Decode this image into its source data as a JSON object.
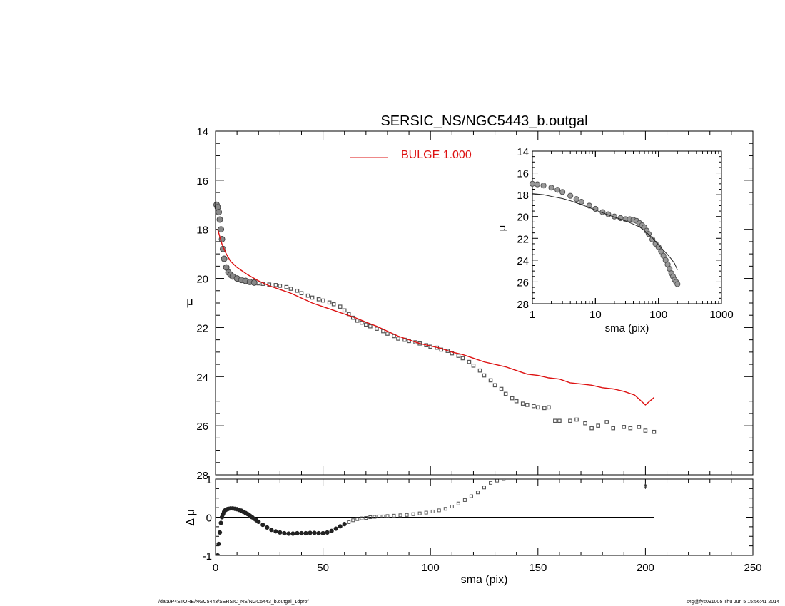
{
  "footer": {
    "left": "/data/P4STORE/NGC5443/SERSIC_NS/NGC5443_b.outgal_1dprof",
    "right": "s4g@fys091005  Thu Jun  5 15:56:41 2014"
  },
  "chart_data": [
    {
      "id": "main",
      "type": "scatter",
      "title": "SERSIC_NS/NGC5443_b.outgal",
      "xlabel": "",
      "ylabel": "μ",
      "xlim": [
        0,
        250
      ],
      "ylim": [
        28,
        14
      ],
      "y_inverted": true,
      "yticks": [
        "14",
        "16",
        "18",
        "20",
        "22",
        "24",
        "26",
        "28"
      ],
      "legend": {
        "placement": "top-center",
        "label": "BULGE  1.000",
        "color": "#dd1111"
      },
      "series": [
        {
          "kind": "data_points",
          "color": "#555555",
          "x": [
            0.5,
            1,
            1.5,
            2,
            2.5,
            3,
            3.5,
            4,
            5,
            6,
            7,
            8,
            10,
            12,
            14,
            16,
            18,
            20,
            22,
            25,
            28,
            30,
            33,
            35,
            38,
            40,
            43,
            45,
            48,
            50,
            53,
            55,
            58,
            60,
            62,
            64,
            66,
            68,
            70,
            72,
            75,
            78,
            80,
            83,
            85,
            88,
            90,
            93,
            95,
            98,
            100,
            103,
            105,
            108,
            110,
            113,
            115,
            118,
            120,
            123,
            125,
            128,
            130,
            133,
            135,
            138,
            140,
            143,
            145,
            148,
            150,
            153,
            155,
            158,
            160,
            165,
            168,
            172,
            175,
            178,
            182,
            185,
            190,
            193,
            197,
            200,
            204
          ],
          "y": [
            17.0,
            17.1,
            17.3,
            17.6,
            18.0,
            18.4,
            18.8,
            19.2,
            19.55,
            19.75,
            19.85,
            19.92,
            20.0,
            20.06,
            20.1,
            20.14,
            20.17,
            20.2,
            20.22,
            20.25,
            20.27,
            20.3,
            20.35,
            20.42,
            20.5,
            20.6,
            20.7,
            20.78,
            20.85,
            20.9,
            20.98,
            21.05,
            21.15,
            21.3,
            21.45,
            21.6,
            21.72,
            21.8,
            21.88,
            21.95,
            22.05,
            22.15,
            22.25,
            22.35,
            22.45,
            22.5,
            22.55,
            22.6,
            22.65,
            22.72,
            22.78,
            22.82,
            22.9,
            22.95,
            23.05,
            23.15,
            23.25,
            23.4,
            23.55,
            23.75,
            23.95,
            24.15,
            24.35,
            24.5,
            24.7,
            24.88,
            25.0,
            25.1,
            25.15,
            25.2,
            25.25,
            25.28,
            25.25,
            25.8,
            25.8,
            25.8,
            25.75,
            25.9,
            26.1,
            26.0,
            25.85,
            26.1,
            26.05,
            26.1,
            26.05,
            26.2,
            26.25
          ]
        },
        {
          "kind": "model_line",
          "name": "BULGE  1.000",
          "color": "#dd1111",
          "x": [
            1,
            3,
            5,
            7,
            10,
            15,
            20,
            25,
            30,
            35,
            40,
            45,
            50,
            55,
            60,
            65,
            70,
            75,
            80,
            85,
            90,
            95,
            100,
            105,
            110,
            115,
            120,
            125,
            130,
            135,
            140,
            145,
            150,
            155,
            160,
            165,
            170,
            175,
            180,
            185,
            190,
            195,
            200,
            204
          ],
          "y": [
            18.0,
            18.6,
            19.0,
            19.3,
            19.55,
            19.85,
            20.1,
            20.3,
            20.45,
            20.6,
            20.8,
            21.0,
            21.15,
            21.3,
            21.45,
            21.6,
            21.78,
            21.95,
            22.15,
            22.35,
            22.5,
            22.65,
            22.75,
            22.85,
            23.0,
            23.1,
            23.25,
            23.4,
            23.5,
            23.6,
            23.75,
            23.9,
            23.95,
            24.05,
            24.1,
            24.25,
            24.3,
            24.35,
            24.45,
            24.5,
            24.6,
            24.75,
            25.15,
            24.85
          ]
        }
      ]
    },
    {
      "id": "residual",
      "type": "scatter",
      "xlabel": "sma (pix)",
      "ylabel": "Δ μ",
      "xlim": [
        0,
        250
      ],
      "ylim": [
        -1,
        1
      ],
      "xticks": [
        "0",
        "50",
        "100",
        "150",
        "200",
        "250"
      ],
      "yticks": [
        "1",
        "0",
        "-1"
      ],
      "zero_line": {
        "x": [
          0,
          204
        ],
        "y": 0
      },
      "error_point": {
        "x": 200,
        "y": 0.82,
        "err": 0.08
      },
      "series": [
        {
          "kind": "residuals",
          "color": "#222222",
          "x": [
            1,
            1.5,
            2,
            2.5,
            3,
            3.5,
            4,
            4.5,
            5,
            5.5,
            6,
            7,
            8,
            9,
            10,
            11,
            12,
            13,
            14,
            15,
            16,
            17,
            18,
            19,
            20,
            22,
            24,
            26,
            28,
            30,
            32,
            34,
            36,
            38,
            40,
            42,
            44,
            46,
            48,
            50,
            52,
            54,
            56,
            58,
            60,
            62,
            64,
            66,
            68,
            70,
            72,
            74,
            76,
            78,
            80,
            83,
            86,
            89,
            92,
            95,
            98,
            101,
            104,
            107,
            110,
            113,
            116,
            119,
            122,
            125,
            128,
            131,
            134,
            137,
            140
          ],
          "y": [
            -1.0,
            -0.7,
            -0.4,
            -0.15,
            0.0,
            0.08,
            0.14,
            0.18,
            0.2,
            0.21,
            0.22,
            0.23,
            0.23,
            0.22,
            0.21,
            0.19,
            0.17,
            0.14,
            0.11,
            0.08,
            0.04,
            0.0,
            -0.04,
            -0.08,
            -0.12,
            -0.2,
            -0.27,
            -0.33,
            -0.37,
            -0.4,
            -0.42,
            -0.43,
            -0.43,
            -0.42,
            -0.42,
            -0.42,
            -0.41,
            -0.41,
            -0.42,
            -0.42,
            -0.4,
            -0.36,
            -0.3,
            -0.24,
            -0.18,
            -0.13,
            -0.08,
            -0.05,
            -0.03,
            -0.02,
            0.0,
            0.01,
            0.02,
            0.02,
            0.03,
            0.04,
            0.05,
            0.06,
            0.08,
            0.1,
            0.12,
            0.15,
            0.18,
            0.22,
            0.28,
            0.36,
            0.45,
            0.55,
            0.65,
            0.78,
            0.9,
            0.96,
            1.0,
            1.05,
            1.1
          ]
        }
      ]
    },
    {
      "id": "inset",
      "type": "scatter",
      "xlabel": "sma (pix)",
      "ylabel": "μ",
      "x_scale": "log",
      "xlim": [
        1,
        1000
      ],
      "ylim": [
        28,
        14
      ],
      "y_inverted": true,
      "xticks": [
        "1",
        "10",
        "100",
        "1000"
      ],
      "yticks": [
        "14",
        "16",
        "18",
        "20",
        "22",
        "24",
        "26",
        "28"
      ],
      "series": [
        {
          "kind": "data_points",
          "color": "#777777",
          "x": [
            1.0,
            1.2,
            1.5,
            2,
            2.5,
            3,
            4,
            5,
            6,
            8,
            10,
            13,
            16,
            20,
            25,
            30,
            35,
            40,
            45,
            50,
            55,
            60,
            65,
            70,
            80,
            90,
            100,
            110,
            120,
            130,
            140,
            150,
            160,
            170,
            180,
            190,
            200
          ],
          "y": [
            17.0,
            17.05,
            17.15,
            17.35,
            17.55,
            17.75,
            18.1,
            18.4,
            18.65,
            19.0,
            19.3,
            19.6,
            19.8,
            20.0,
            20.15,
            20.25,
            20.25,
            20.3,
            20.4,
            20.6,
            20.8,
            21.0,
            21.3,
            21.6,
            22.1,
            22.5,
            22.8,
            23.2,
            23.6,
            24.0,
            24.4,
            24.8,
            25.2,
            25.5,
            25.8,
            26.0,
            26.2
          ]
        },
        {
          "kind": "model_line",
          "color": "#222222",
          "x": [
            1,
            1.5,
            2,
            3,
            4,
            5,
            7,
            10,
            15,
            20,
            30,
            40,
            50,
            60,
            80,
            100,
            120,
            140,
            160,
            180,
            200
          ],
          "y": [
            17.9,
            18.0,
            18.15,
            18.35,
            18.55,
            18.75,
            19.05,
            19.4,
            19.8,
            20.05,
            20.4,
            20.7,
            20.95,
            21.3,
            21.95,
            22.6,
            23.1,
            23.5,
            23.9,
            24.3,
            24.9
          ]
        }
      ]
    }
  ]
}
